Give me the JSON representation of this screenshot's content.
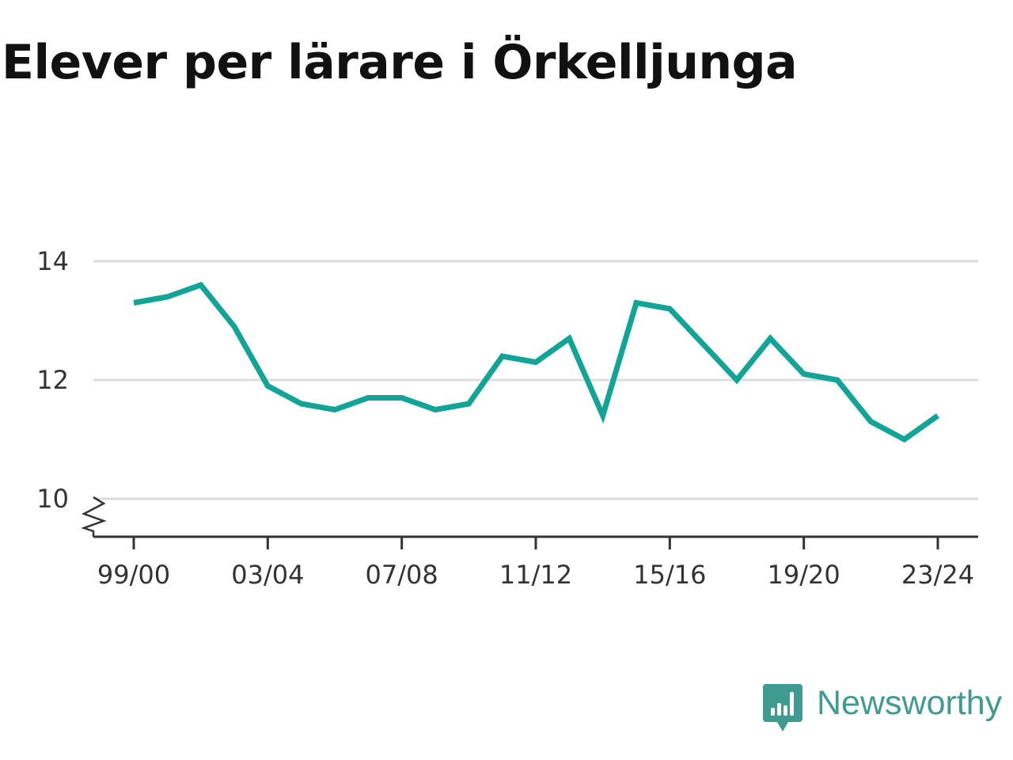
{
  "title": "Elever per lärare i Örkelljunga",
  "brand": {
    "name": "Newsworthy",
    "icon": "newsworthy-logo-icon",
    "color": "#3f9b8f"
  },
  "chart_data": {
    "type": "line",
    "title": "Elever per lärare i Örkelljunga",
    "xlabel": "",
    "ylabel": "",
    "x": [
      "99/00",
      "00/01",
      "01/02",
      "02/03",
      "03/04",
      "04/05",
      "05/06",
      "06/07",
      "07/08",
      "08/09",
      "09/10",
      "10/11",
      "11/12",
      "12/13",
      "13/14",
      "14/15",
      "15/16",
      "16/17",
      "17/18",
      "18/19",
      "19/20",
      "20/21",
      "21/22",
      "22/23",
      "23/24"
    ],
    "series": [
      {
        "values": [
          13.3,
          13.4,
          13.6,
          12.9,
          11.9,
          11.6,
          11.5,
          11.7,
          11.7,
          11.5,
          11.6,
          12.4,
          12.3,
          12.7,
          11.4,
          13.3,
          13.2,
          12.6,
          12.0,
          12.7,
          12.1,
          12.0,
          11.3,
          11.0,
          11.4
        ],
        "color": "#11a497"
      }
    ],
    "x_tick_labels": [
      "99/00",
      "03/04",
      "07/08",
      "11/12",
      "15/16",
      "19/20",
      "23/24"
    ],
    "y_ticks": [
      "10",
      "12",
      "14"
    ],
    "ylim": [
      10,
      14
    ],
    "y_axis_break": true,
    "grid": true,
    "legend": "none"
  }
}
